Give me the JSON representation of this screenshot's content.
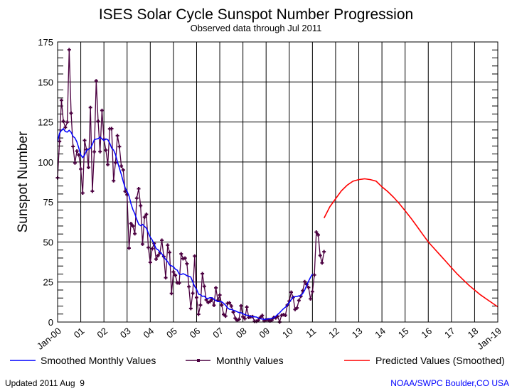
{
  "chart_data": {
    "type": "line",
    "title": "ISES Solar Cycle Sunspot Number Progression",
    "subtitle": "Observed data through Jul 2011",
    "ylabel": "Sunspot Number",
    "xlabel": "",
    "ylim": [
      0,
      175
    ],
    "yticks": [
      0,
      25,
      50,
      75,
      100,
      125,
      150,
      175
    ],
    "xlim": [
      "2000-01",
      "2019-01"
    ],
    "xtick_labels": [
      "Jan-00",
      "01",
      "02",
      "03",
      "04",
      "05",
      "06",
      "07",
      "08",
      "09",
      "10",
      "11",
      "12",
      "13",
      "14",
      "15",
      "16",
      "17",
      "18",
      "Jan-19"
    ],
    "grid": true,
    "legend_position": "bottom",
    "colors": {
      "smoothed": "#0000ff",
      "monthly": "#4b0040",
      "predicted": "#ff0000"
    },
    "series": [
      {
        "name": "Smoothed Monthly Values",
        "by_year_monthly": {
          "2000": [
            112.9,
            117.9,
            119.8,
            120.8,
            119.0,
            118.7,
            119.8,
            118.6,
            116.0,
            115.0,
            112.6,
            108.6
          ],
          "2001": [
            104.4,
            102.8,
            104.4,
            107.2,
            108.0,
            108.7,
            111.0,
            113.9,
            114.3,
            114.6,
            115.5,
            114.5
          ],
          "2002": [
            113.5,
            114.4,
            113.9,
            111.8,
            108.7,
            107.5,
            104.6,
            100.1,
            96.1,
            92.2,
            87.8,
            83.9
          ],
          "2003": [
            81.7,
            78.6,
            73.9,
            70.2,
            67.7,
            64.2,
            61.1,
            60.2,
            61.0,
            59.8,
            58.6,
            55.6
          ],
          "2004": [
            53.0,
            51.3,
            48.8,
            45.9,
            45.2,
            43.6,
            42.6,
            40.7,
            39.1,
            37.7,
            35.6,
            35.1
          ],
          "2005": [
            34.6,
            33.0,
            32.4,
            30.0,
            29.7,
            30.2,
            29.7,
            28.9,
            28.6,
            28.1,
            25.1,
            22.2
          ],
          "2006": [
            20.4,
            17.4,
            17.0,
            16.1,
            16.2,
            14.9,
            14.8,
            15.3,
            15.1,
            14.2,
            13.4,
            12.8
          ],
          "2007": [
            12.8,
            12.6,
            11.7,
            10.5,
            8.9,
            8.0,
            7.9,
            7.4,
            7.0,
            6.4,
            5.9,
            5.8
          ],
          "2008": [
            5.2,
            4.6,
            4.2,
            4.0,
            3.6,
            3.3,
            3.3,
            3.1,
            2.5,
            2.1,
            1.8,
            1.7
          ],
          "2009": [
            1.8,
            1.9,
            2.2,
            2.3,
            2.7,
            3.6,
            4.8,
            5.8,
            7.1,
            8.3,
            9.3,
            10.6
          ],
          "2010": [
            12.3,
            14.0,
            15.5,
            15.9,
            16.0,
            16.4,
            16.5,
            17.9,
            20.0,
            22.9,
            25.5,
            28.0
          ],
          "2011": [
            30.0
          ]
        }
      },
      {
        "name": "Monthly Values",
        "by_year_monthly": {
          "2000": [
            90.1,
            112.9,
            138.5,
            125.5,
            121.6,
            124.9,
            170.1,
            130.5,
            109.7,
            99.4,
            106.8,
            104.4
          ],
          "2001": [
            95.6,
            80.6,
            113.5,
            107.7,
            96.6,
            134.0,
            81.8,
            106.4,
            150.7,
            125.5,
            106.5,
            132.2
          ],
          "2002": [
            114.1,
            107.4,
            98.4,
            120.7,
            120.8,
            88.3,
            99.6,
            116.4,
            109.6,
            97.5,
            95.0,
            81.6
          ],
          "2003": [
            79.5,
            46.2,
            61.5,
            60.0,
            55.2,
            77.4,
            83.3,
            72.7,
            48.7,
            65.5,
            67.3,
            46.5
          ],
          "2004": [
            37.3,
            45.8,
            49.1,
            39.3,
            41.5,
            43.2,
            51.1,
            40.9,
            27.7,
            48.0,
            43.5,
            17.9
          ],
          "2005": [
            31.3,
            29.2,
            24.5,
            24.4,
            42.6,
            39.6,
            39.9,
            36.4,
            22.1,
            8.5,
            18.0,
            41.2
          ],
          "2006": [
            15.3,
            4.9,
            10.6,
            30.2,
            22.3,
            13.9,
            12.2,
            12.9,
            14.4,
            10.5,
            21.4,
            13.6
          ],
          "2007": [
            16.9,
            10.6,
            4.8,
            3.7,
            11.7,
            12.0,
            10.0,
            6.2,
            2.4,
            0.9,
            1.7,
            10.1
          ],
          "2008": [
            3.3,
            2.1,
            9.3,
            2.9,
            3.2,
            3.4,
            0.5,
            0.5,
            1.1,
            2.9,
            4.1,
            0.8
          ],
          "2009": [
            1.5,
            1.4,
            0.7,
            1.2,
            2.9,
            2.6,
            3.5,
            0.0,
            4.2,
            4.6,
            4.2,
            10.6
          ],
          "2010": [
            13.1,
            18.6,
            15.4,
            7.9,
            8.8,
            13.5,
            16.1,
            19.6,
            25.2,
            23.5,
            21.6,
            14.5
          ],
          "2011": [
            19.0,
            29.4,
            56.2,
            54.4,
            41.6,
            37.0,
            43.9
          ]
        }
      },
      {
        "name": "Predicted Values (Smoothed)",
        "x": [
          "2011-07",
          "2011-10",
          "2012-01",
          "2012-04",
          "2012-07",
          "2012-10",
          "2013-01",
          "2013-04",
          "2013-07",
          "2013-10",
          "2014-01",
          "2014-04",
          "2014-07",
          "2014-10",
          "2015-01",
          "2015-04",
          "2015-07",
          "2015-10",
          "2016-01",
          "2016-04",
          "2016-07",
          "2016-10",
          "2017-01",
          "2017-04",
          "2017-07",
          "2017-10",
          "2018-01",
          "2018-04",
          "2018-07",
          "2018-10",
          "2019-01"
        ],
        "y": [
          65,
          72,
          77,
          82,
          85.5,
          88,
          89,
          89.5,
          89,
          88,
          84.5,
          81.5,
          78,
          74,
          69.5,
          65,
          60,
          55,
          50,
          46,
          42,
          38,
          34,
          30,
          26.5,
          23,
          20,
          17,
          14.5,
          12,
          9.5
        ]
      }
    ]
  },
  "footer": {
    "updated": "Updated 2011 Aug  9",
    "credit": "NOAA/SWPC Boulder,CO USA"
  }
}
